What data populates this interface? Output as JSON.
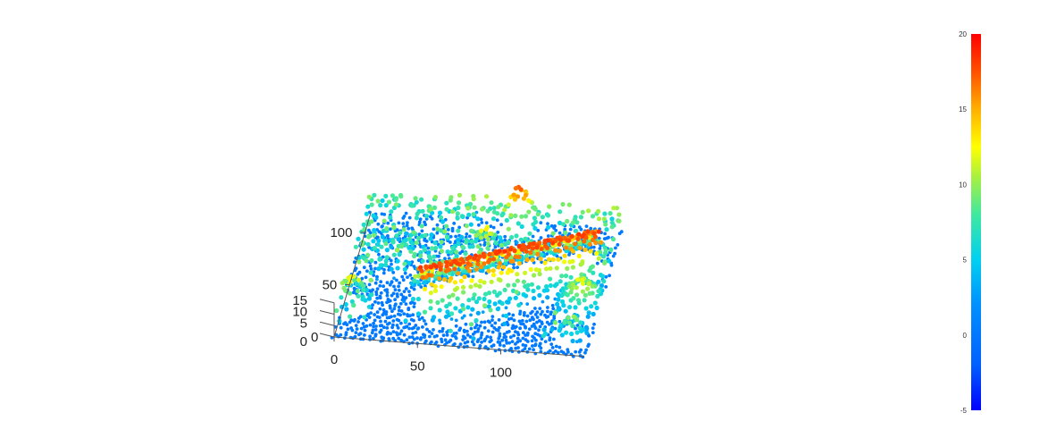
{
  "chart_data": {
    "type": "scatter",
    "variant": "3d-point-cloud",
    "title": "",
    "xlabel": "",
    "ylabel": "",
    "zlabel": "",
    "xlim": [
      0,
      150
    ],
    "ylim": [
      0,
      120
    ],
    "zlim": [
      0,
      15
    ],
    "x_ticks": [
      "0",
      "50",
      "100"
    ],
    "y_ticks": [
      "0",
      "50",
      "100"
    ],
    "z_ticks": [
      "0",
      "5",
      "10",
      "15"
    ],
    "grid": false,
    "colormap": "jet",
    "colorbar": {
      "position": "right",
      "min": -5,
      "max": 20,
      "ticks": [
        "-5",
        "0",
        "5",
        "10",
        "15",
        "20"
      ]
    },
    "point_sampling": {
      "grid_spacing": 3,
      "ground_level": 0,
      "features": [
        {
          "kind": "ridge",
          "cx": 95,
          "cy": 55,
          "half_width": 10,
          "direction": [
            1,
            0.5
          ],
          "peak_height": 18
        },
        {
          "kind": "clump",
          "cx": 65,
          "cy": 45,
          "radius": 5,
          "peak_height": 17
        },
        {
          "kind": "clump",
          "cx": 90,
          "cy": 115,
          "radius": 7,
          "peak_height": 18
        },
        {
          "kind": "clump",
          "cx": 75,
          "cy": 85,
          "radius": 5,
          "peak_height": 14
        },
        {
          "kind": "clump",
          "cx": 5,
          "cy": 30,
          "radius": 7,
          "peak_height": 13
        },
        {
          "kind": "clump",
          "cx": 140,
          "cy": 45,
          "radius": 10,
          "peak_height": 12
        },
        {
          "kind": "clump",
          "cx": 140,
          "cy": 15,
          "radius": 6,
          "peak_height": 10
        },
        {
          "kind": "band",
          "y_min": 105,
          "y_max": 125,
          "height": 9
        },
        {
          "kind": "band",
          "y_min": 55,
          "y_max": 95,
          "height": 8
        }
      ]
    }
  }
}
